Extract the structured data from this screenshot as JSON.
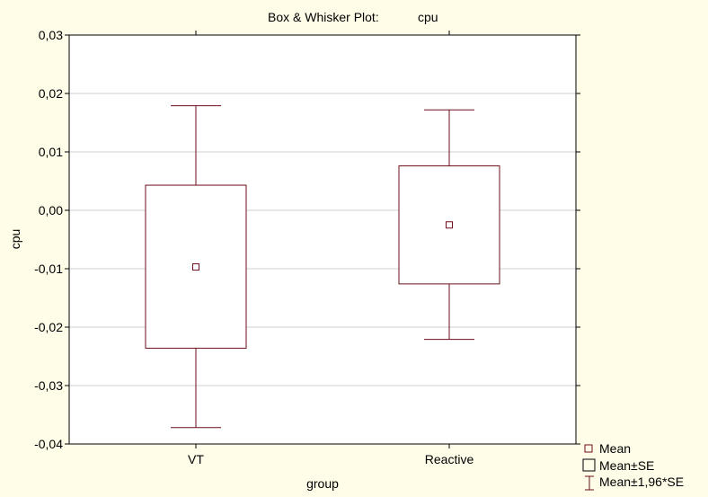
{
  "chart_data": {
    "type": "box",
    "title_prefix": "Box & Whisker Plot:",
    "title_variable": "cpu",
    "xlabel": "group",
    "ylabel": "cpu",
    "ylim": [
      -0.04,
      0.03
    ],
    "yticks": [
      {
        "value": 0.03,
        "label": "0,03"
      },
      {
        "value": 0.02,
        "label": "0,02"
      },
      {
        "value": 0.01,
        "label": "0,01"
      },
      {
        "value": 0.0,
        "label": "0,00"
      },
      {
        "value": -0.01,
        "label": "-0,01"
      },
      {
        "value": -0.02,
        "label": "-0,02"
      },
      {
        "value": -0.03,
        "label": "-0,03"
      },
      {
        "value": -0.04,
        "label": "-0,04"
      }
    ],
    "categories": [
      "VT",
      "Reactive"
    ],
    "groups": [
      {
        "name": "VT",
        "mean": -0.0097,
        "se_low": -0.0236,
        "se_high": 0.0043,
        "ci_low": -0.0372,
        "ci_high": 0.0179
      },
      {
        "name": "Reactive",
        "mean": -0.0025,
        "se_low": -0.0126,
        "se_high": 0.0076,
        "ci_low": -0.0221,
        "ci_high": 0.0172
      }
    ],
    "grid": true,
    "legend": [
      {
        "symbol": "mean",
        "label": "Mean"
      },
      {
        "symbol": "box",
        "label": "Mean±SE"
      },
      {
        "symbol": "whisker",
        "label": "Mean±1,96*SE"
      }
    ],
    "legend_position": "bottom-right",
    "colors": {
      "box": "#6B0F1A",
      "background": "#FFFDE8",
      "plot_bg": "#FFFFFF",
      "grid": "#D0D0D0",
      "frame": "#000000"
    }
  }
}
